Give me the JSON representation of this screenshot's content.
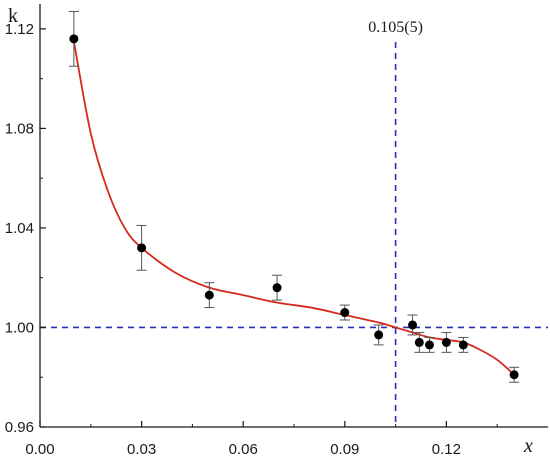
{
  "chart_data": {
    "type": "scatter",
    "title": "",
    "xlabel": "x",
    "ylabel": "k",
    "xlim": [
      0.0,
      0.15
    ],
    "ylim": [
      0.96,
      1.13
    ],
    "xticks": [
      0.0,
      0.03,
      0.06,
      0.09,
      0.12
    ],
    "xtick_labels": [
      "0.00",
      "0.03",
      "0.06",
      "0.09",
      "0.12"
    ],
    "yticks": [
      0.96,
      1.0,
      1.04,
      1.08,
      1.12
    ],
    "ytick_labels": [
      "0.96",
      "1.00",
      "1.04",
      "1.08",
      "1.12"
    ],
    "grid": false,
    "legend": "none",
    "series": [
      {
        "type": "scatter",
        "x": [
          0.01,
          0.03,
          0.05,
          0.07,
          0.09,
          0.1,
          0.11,
          0.112,
          0.115,
          0.12,
          0.125,
          0.14
        ],
        "y": [
          1.116,
          1.032,
          1.013,
          1.016,
          1.006,
          0.997,
          1.001,
          0.994,
          0.993,
          0.994,
          0.993,
          0.981
        ],
        "y_error": [
          0.011,
          0.009,
          0.005,
          0.005,
          0.003,
          0.004,
          0.004,
          0.004,
          0.003,
          0.004,
          0.003,
          0.003
        ],
        "color": "#000000"
      },
      {
        "type": "line",
        "x": [
          0.01,
          0.015,
          0.02,
          0.025,
          0.03,
          0.04,
          0.05,
          0.06,
          0.07,
          0.08,
          0.09,
          0.1,
          0.105,
          0.11,
          0.115,
          0.12,
          0.125,
          0.13,
          0.135,
          0.14
        ],
        "y": [
          1.115,
          1.078,
          1.055,
          1.04,
          1.032,
          1.022,
          1.016,
          1.013,
          1.01,
          1.008,
          1.005,
          1.002,
          1.0,
          0.998,
          0.996,
          0.995,
          0.994,
          0.991,
          0.987,
          0.981
        ],
        "color": "#d42a1c"
      }
    ],
    "reference_lines": {
      "vertical": {
        "x": 0.105,
        "label": "0.105(5)",
        "color": "#2a2fb8"
      },
      "horizontal": {
        "y": 1.0,
        "color": "#2a2fb8"
      }
    }
  }
}
